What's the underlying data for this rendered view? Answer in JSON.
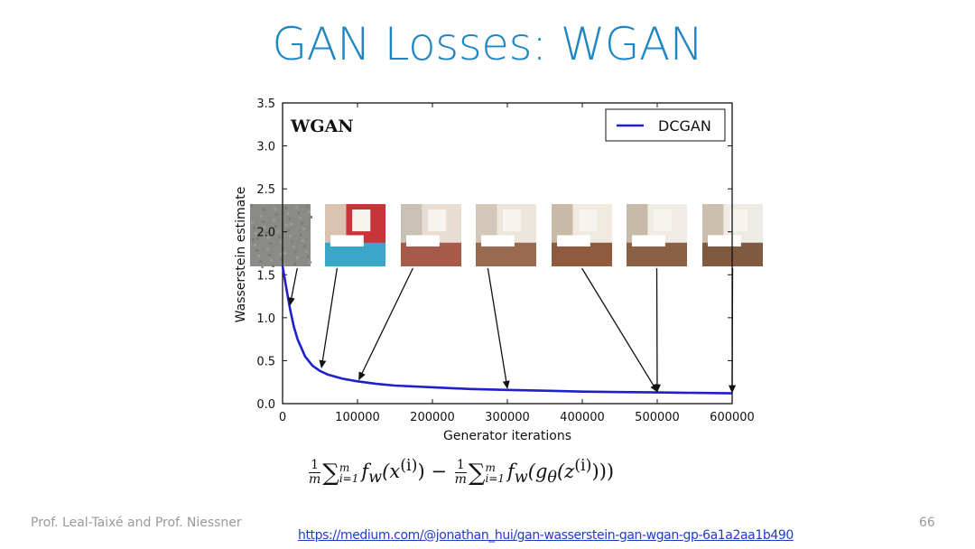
{
  "slide": {
    "title": "GAN Losses: WGAN",
    "author": "Prof. Leal-Taixé and Prof. Niessner",
    "page_number": "66",
    "link": "https://medium.com/@jonathan_hui/gan-wasserstein-gan-wgan-gp-6a1a2aa1b490"
  },
  "formula": {
    "one": "1",
    "m": "m",
    "sum_lower": "i=1",
    "sum_upper": "m",
    "term1": "f",
    "w": "w",
    "x_part": "(x",
    "sup_i": "(i)",
    "close1": ")",
    "minus": "−",
    "term2_open": "(g",
    "theta": "θ",
    "z_part": "(z",
    "close2": ")))"
  },
  "chart_data": {
    "type": "line",
    "title": "WGAN",
    "xlabel": "Generator iterations",
    "ylabel": "Wasserstein estimate",
    "xlim": [
      0,
      600000
    ],
    "ylim": [
      0,
      3.5
    ],
    "x_ticks": [
      0,
      100000,
      200000,
      300000,
      400000,
      500000,
      600000
    ],
    "x_tick_labels": [
      "0",
      "100000",
      "200000",
      "300000",
      "400000",
      "500000",
      "600000"
    ],
    "y_ticks": [
      0.0,
      0.5,
      1.0,
      1.5,
      2.0,
      2.5,
      3.0,
      3.5
    ],
    "y_tick_labels": [
      "0.0",
      "0.5",
      "1.0",
      "1.5",
      "2.0",
      "2.5",
      "3.0",
      "3.5"
    ],
    "grid": false,
    "legend_position": "top-right",
    "series": [
      {
        "name": "DCGAN",
        "color": "#1f1fcc",
        "x": [
          0,
          5000,
          10000,
          15000,
          20000,
          30000,
          40000,
          50000,
          60000,
          80000,
          100000,
          125000,
          150000,
          200000,
          250000,
          300000,
          350000,
          400000,
          450000,
          500000,
          550000,
          600000
        ],
        "y": [
          1.6,
          1.35,
          1.1,
          0.9,
          0.75,
          0.55,
          0.44,
          0.38,
          0.34,
          0.29,
          0.26,
          0.23,
          0.21,
          0.19,
          0.17,
          0.16,
          0.15,
          0.14,
          0.135,
          0.13,
          0.125,
          0.12
        ]
      }
    ],
    "thumbnails": [
      {
        "label": "noise",
        "arrow_x": 10000,
        "arrow_y": 1.15,
        "colors": [
          "#8a8a86",
          "#9a9890",
          "#7c7d7a"
        ]
      },
      {
        "label": "blurry room",
        "arrow_x": 52000,
        "arrow_y": 0.42,
        "colors": [
          "#3aa6c8",
          "#c8343a",
          "#d9c3b0"
        ]
      },
      {
        "label": "bedroom",
        "arrow_x": 102000,
        "arrow_y": 0.28,
        "colors": [
          "#a85a4a",
          "#e7ddd0",
          "#c9c1b4"
        ]
      },
      {
        "label": "bedroom",
        "arrow_x": 300000,
        "arrow_y": 0.18,
        "colors": [
          "#9a6a50",
          "#ece6dc",
          "#d2c7b9"
        ]
      },
      {
        "label": "bedroom",
        "arrow_x": 500000,
        "arrow_y": 0.14,
        "colors": [
          "#8f5a3e",
          "#efe9e0",
          "#c9b9a6"
        ]
      },
      {
        "label": "bedroom",
        "arrow_x": 500000,
        "arrow_y": 0.14,
        "colors": [
          "#8a6144",
          "#f0ebe4",
          "#c7baa9"
        ]
      },
      {
        "label": "bedroom",
        "arrow_x": 600000,
        "arrow_y": 0.13,
        "colors": [
          "#7f5a41",
          "#eeeae4",
          "#cdbfae"
        ]
      }
    ]
  }
}
